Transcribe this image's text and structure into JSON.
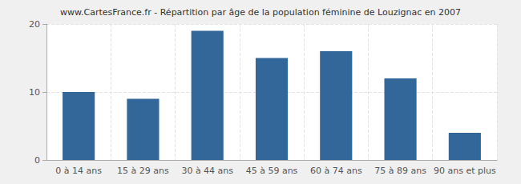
{
  "chart_data": {
    "type": "bar",
    "title": "www.CartesFrance.fr - Répartition par âge de la population féminine de Louzignac en 2007",
    "categories": [
      "0 à 14 ans",
      "15 à 29 ans",
      "30 à 44 ans",
      "45 à 59 ans",
      "60 à 74 ans",
      "75 à 89 ans",
      "90 ans et plus"
    ],
    "values": [
      10,
      9,
      19,
      15,
      16,
      12,
      4
    ],
    "color": "#336699",
    "ylim": [
      0,
      20
    ],
    "yticks": [
      0,
      10,
      20
    ],
    "grid": true
  }
}
